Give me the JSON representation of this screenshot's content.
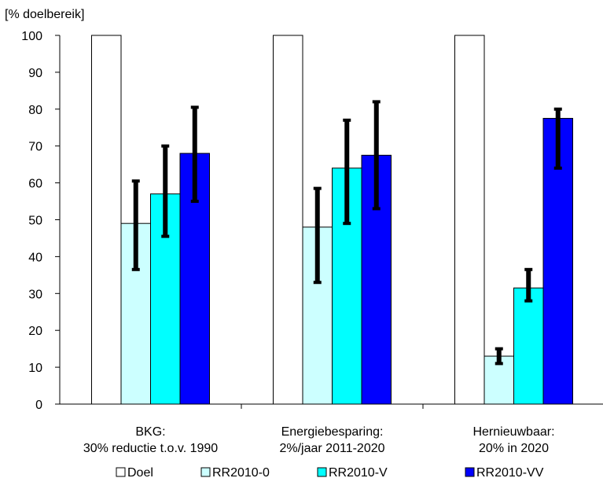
{
  "chart_data": {
    "type": "bar",
    "ylabel": "[% doelbereik]",
    "ylim": [
      0,
      100
    ],
    "yticks": [
      0,
      10,
      20,
      30,
      40,
      50,
      60,
      70,
      80,
      90,
      100
    ],
    "grid": false,
    "legend_position": "bottom",
    "categories": [
      [
        "BKG:",
        "30% reductie t.o.v. 1990"
      ],
      [
        "Energiebesparing:",
        "2%/jaar 2011-2020"
      ],
      [
        "Hernieuwbaar:",
        "20% in 2020"
      ]
    ],
    "series": [
      {
        "name": "Doel",
        "color": "#ffffff",
        "values": [
          100,
          100,
          100
        ],
        "error_low": [
          null,
          null,
          null
        ],
        "error_high": [
          null,
          null,
          null
        ]
      },
      {
        "name": "RR2010-0",
        "color": "#ccffff",
        "values": [
          49,
          48,
          13
        ],
        "error_low": [
          36.5,
          33,
          11
        ],
        "error_high": [
          60.5,
          58.5,
          15
        ]
      },
      {
        "name": "RR2010-V",
        "color": "#00ffff",
        "values": [
          57,
          64,
          31.5
        ],
        "error_low": [
          45.5,
          49,
          28
        ],
        "error_high": [
          70,
          77,
          36.5
        ]
      },
      {
        "name": "RR2010-VV",
        "color": "#0000ff",
        "values": [
          68,
          67.5,
          77.5
        ],
        "error_low": [
          55,
          53,
          64
        ],
        "error_high": [
          80.5,
          82,
          80
        ]
      }
    ]
  }
}
